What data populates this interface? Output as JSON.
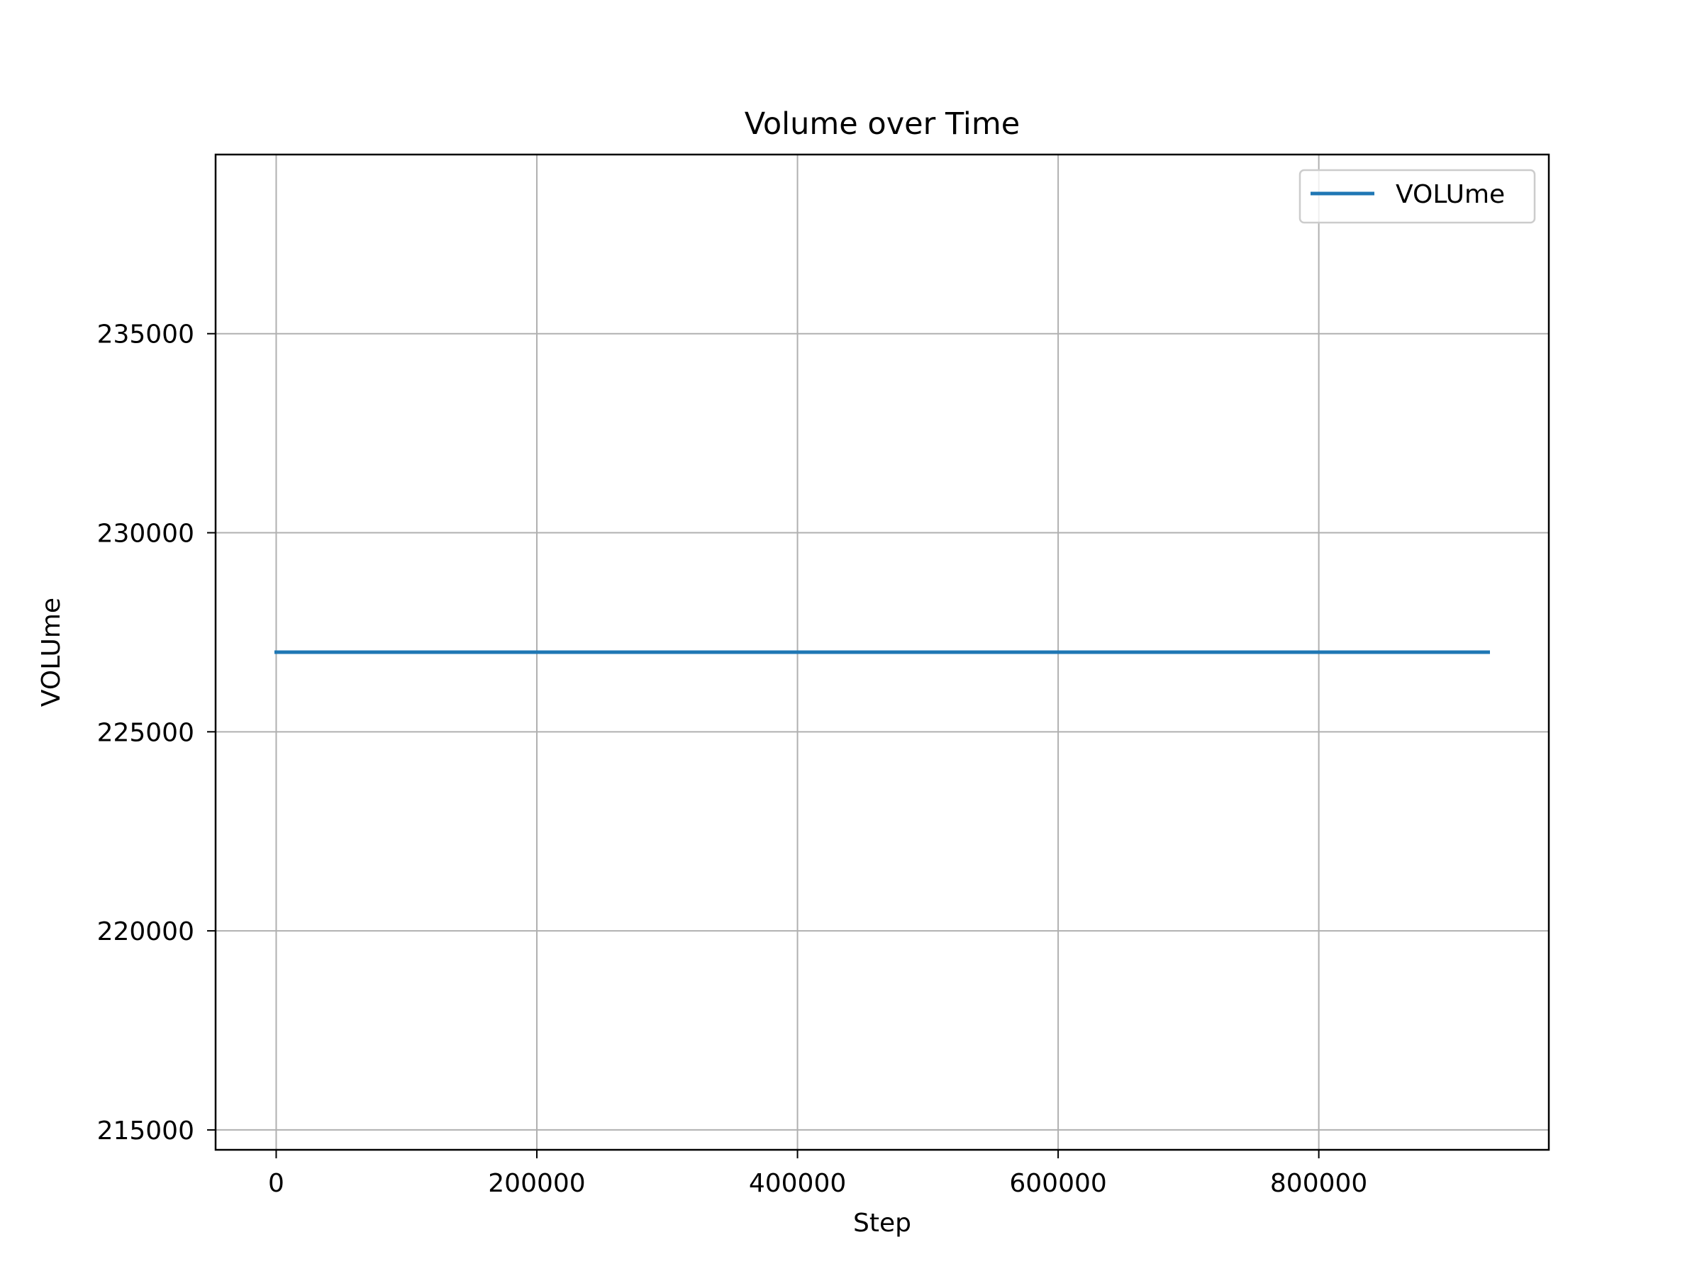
{
  "chart_data": {
    "type": "line",
    "title": "Volume over Time",
    "xlabel": "Step",
    "ylabel": "VOLUme",
    "xlim": [
      -46500,
      976500
    ],
    "ylim": [
      214500,
      239500
    ],
    "x_ticks": [
      0,
      200000,
      400000,
      600000,
      800000
    ],
    "y_ticks": [
      215000,
      220000,
      225000,
      230000,
      235000
    ],
    "grid": true,
    "legend_position": "top-right",
    "series": [
      {
        "name": "VOLUme",
        "color": "#1f77b4",
        "x": [
          0,
          930000
        ],
        "y": [
          227000,
          227000
        ]
      }
    ]
  }
}
